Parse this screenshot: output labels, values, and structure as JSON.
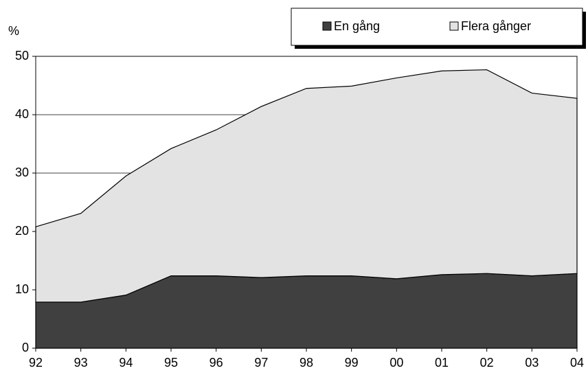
{
  "chart_data": {
    "type": "stacked-area",
    "y_label": "%",
    "categories": [
      "92",
      "93",
      "94",
      "95",
      "96",
      "97",
      "98",
      "99",
      "00",
      "01",
      "02",
      "03",
      "04"
    ],
    "series": [
      {
        "name": "En gång",
        "color": "#404040",
        "values": [
          7.9,
          7.9,
          9.1,
          12.4,
          12.4,
          12.1,
          12.4,
          12.4,
          11.9,
          12.6,
          12.8,
          12.4,
          12.8
        ]
      },
      {
        "name": "Flera gånger",
        "color": "#e3e3e3",
        "values": [
          12.9,
          15.2,
          20.4,
          21.8,
          25.0,
          29.3,
          32.1,
          32.5,
          34.4,
          34.9,
          34.9,
          31.3,
          30.0
        ]
      }
    ],
    "ylim": [
      0,
      50
    ],
    "yticks": [
      0,
      10,
      20,
      30,
      40,
      50
    ],
    "grid": true,
    "legend": "top"
  }
}
